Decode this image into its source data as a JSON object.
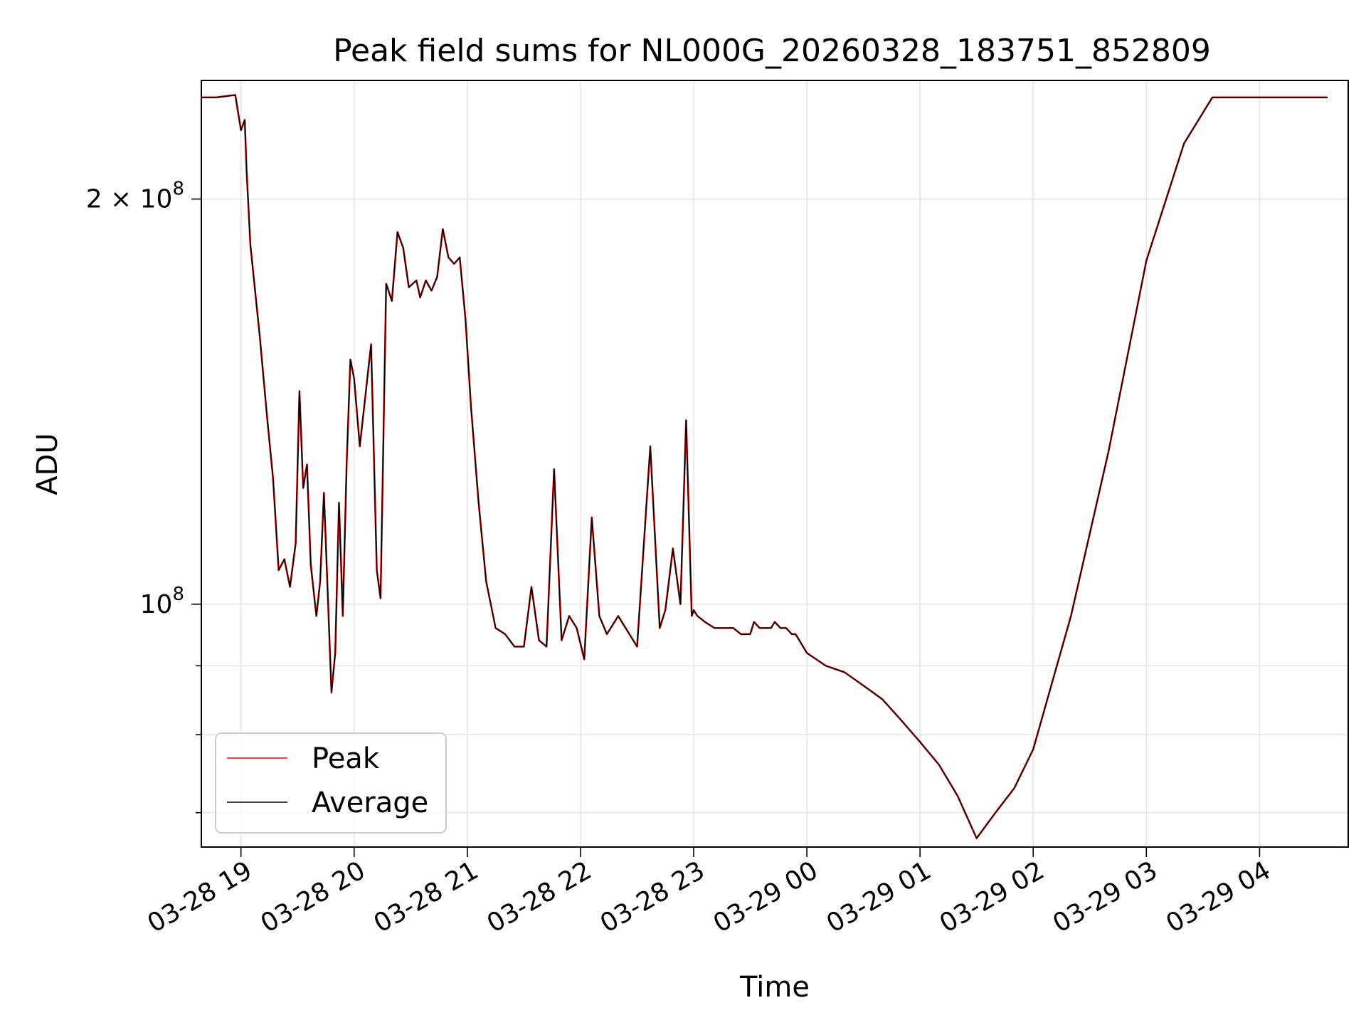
{
  "chart_data": {
    "type": "line",
    "title": "Peak field sums for NL000G_20260328_183751_852809",
    "xlabel": "Time",
    "ylabel": "ADU",
    "xscale": "time",
    "yscale": "log",
    "xlim": [
      "2026-03-28 18:39",
      "2026-03-29 04:47"
    ],
    "ylim": [
      66000000,
      245000000
    ],
    "grid": true,
    "legend_position": "lower-left",
    "x_tick_labels": [
      "03-28 19",
      "03-28 20",
      "03-28 21",
      "03-28 22",
      "03-28 23",
      "03-29 00",
      "03-29 01",
      "03-29 02",
      "03-29 03",
      "03-29 04"
    ],
    "x_tick_times": [
      "2026-03-28 19:00",
      "2026-03-28 20:00",
      "2026-03-28 21:00",
      "2026-03-28 22:00",
      "2026-03-28 23:00",
      "2026-03-29 00:00",
      "2026-03-29 01:00",
      "2026-03-29 02:00",
      "2026-03-29 03:00",
      "2026-03-29 04:00"
    ],
    "y_major_ticks": [
      {
        "value": 100000000,
        "mantissa": "",
        "base": "10",
        "exp": "8"
      },
      {
        "value": 200000000,
        "mantissa": "2 × ",
        "base": "10",
        "exp": "8"
      }
    ],
    "y_minor_ticks": [
      70000000,
      80000000,
      90000000
    ],
    "series": [
      {
        "name": "Peak",
        "color": "#ff0000",
        "x": [
          "2026-03-28 18:39",
          "2026-03-28 18:47",
          "2026-03-28 18:57",
          "2026-03-28 19:00",
          "2026-03-28 19:02",
          "2026-03-28 19:03",
          "2026-03-28 19:05",
          "2026-03-28 19:10",
          "2026-03-28 19:14",
          "2026-03-28 19:17",
          "2026-03-28 19:20",
          "2026-03-28 19:23",
          "2026-03-28 19:26",
          "2026-03-28 19:29",
          "2026-03-28 19:31",
          "2026-03-28 19:33",
          "2026-03-28 19:35",
          "2026-03-28 19:37",
          "2026-03-28 19:40",
          "2026-03-28 19:42",
          "2026-03-28 19:44",
          "2026-03-28 19:46",
          "2026-03-28 19:48",
          "2026-03-28 19:50",
          "2026-03-28 19:52",
          "2026-03-28 19:54",
          "2026-03-28 19:56",
          "2026-03-28 19:58",
          "2026-03-28 20:00",
          "2026-03-28 20:03",
          "2026-03-28 20:06",
          "2026-03-28 20:09",
          "2026-03-28 20:12",
          "2026-03-28 20:14",
          "2026-03-28 20:17",
          "2026-03-28 20:20",
          "2026-03-28 20:23",
          "2026-03-28 20:26",
          "2026-03-28 20:29",
          "2026-03-28 20:33",
          "2026-03-28 20:35",
          "2026-03-28 20:38",
          "2026-03-28 20:41",
          "2026-03-28 20:44",
          "2026-03-28 20:47",
          "2026-03-28 20:50",
          "2026-03-28 20:53",
          "2026-03-28 20:56",
          "2026-03-28 20:59",
          "2026-03-28 21:02",
          "2026-03-28 21:06",
          "2026-03-28 21:10",
          "2026-03-28 21:15",
          "2026-03-28 21:20",
          "2026-03-28 21:25",
          "2026-03-28 21:30",
          "2026-03-28 21:34",
          "2026-03-28 21:38",
          "2026-03-28 21:42",
          "2026-03-28 21:46",
          "2026-03-28 21:50",
          "2026-03-28 21:54",
          "2026-03-28 21:58",
          "2026-03-28 22:02",
          "2026-03-28 22:06",
          "2026-03-28 22:10",
          "2026-03-28 22:14",
          "2026-03-28 22:20",
          "2026-03-28 22:30",
          "2026-03-28 22:37",
          "2026-03-28 22:42",
          "2026-03-28 22:45",
          "2026-03-28 22:49",
          "2026-03-28 22:53",
          "2026-03-28 22:56",
          "2026-03-28 22:59",
          "2026-03-28 23:00",
          "2026-03-28 23:02",
          "2026-03-28 23:06",
          "2026-03-28 23:11",
          "2026-03-28 23:16",
          "2026-03-28 23:21",
          "2026-03-28 23:25",
          "2026-03-28 23:30",
          "2026-03-28 23:32",
          "2026-03-28 23:35",
          "2026-03-28 23:38",
          "2026-03-28 23:41",
          "2026-03-28 23:43",
          "2026-03-28 23:46",
          "2026-03-28 23:49",
          "2026-03-28 23:52",
          "2026-03-28 23:54",
          "2026-03-28 23:56",
          "2026-03-28 23:58",
          "2026-03-29 00:00",
          "2026-03-29 00:10",
          "2026-03-29 00:20",
          "2026-03-29 00:30",
          "2026-03-29 00:40",
          "2026-03-29 00:50",
          "2026-03-29 01:00",
          "2026-03-29 01:10",
          "2026-03-29 01:20",
          "2026-03-29 01:30",
          "2026-03-29 01:40",
          "2026-03-29 01:50",
          "2026-03-29 02:00",
          "2026-03-29 02:20",
          "2026-03-29 02:40",
          "2026-03-29 03:00",
          "2026-03-29 03:20",
          "2026-03-29 03:35",
          "2026-03-29 03:45",
          "2026-03-29 03:50",
          "2026-03-29 04:00",
          "2026-03-29 04:05",
          "2026-03-29 04:10",
          "2026-03-29 04:15",
          "2026-03-29 04:20",
          "2026-03-29 04:25",
          "2026-03-29 04:30",
          "2026-03-29 04:33",
          "2026-03-29 04:36"
        ],
        "y": [
          238000000,
          238000000,
          239000000,
          225000000,
          229000000,
          210000000,
          185000000,
          158000000,
          137000000,
          124000000,
          106000000,
          108000000,
          103000000,
          111000000,
          144000000,
          122000000,
          127000000,
          107000000,
          98000000,
          104000000,
          121000000,
          102000000,
          86000000,
          92000000,
          119000000,
          98000000,
          127000000,
          152000000,
          147000000,
          131000000,
          143000000,
          156000000,
          106000000,
          101000000,
          173000000,
          168000000,
          189000000,
          184000000,
          172000000,
          174000000,
          169000000,
          174000000,
          171000000,
          175000000,
          190000000,
          181000000,
          179000000,
          181000000,
          163000000,
          140000000,
          119000000,
          104000000,
          96000000,
          95000000,
          93000000,
          93000000,
          103000000,
          94000000,
          93000000,
          126000000,
          94000000,
          98000000,
          96000000,
          91000000,
          116000000,
          98000000,
          95000000,
          98000000,
          93000000,
          131000000,
          96000000,
          99000000,
          110000000,
          100000000,
          137000000,
          98000000,
          99000000,
          98000000,
          97000000,
          96000000,
          96000000,
          96000000,
          95000000,
          95000000,
          97000000,
          96000000,
          96000000,
          96000000,
          97000000,
          96000000,
          96000000,
          95000000,
          95000000,
          94000000,
          93000000,
          92000000,
          90000000,
          89000000,
          87000000,
          85000000,
          82000000,
          79000000,
          76000000,
          72000000,
          67000000,
          70000000,
          73000000,
          78000000,
          98000000,
          130000000,
          180000000,
          220000000,
          238000000,
          238000000,
          238000000,
          238000000,
          238000000,
          238000000,
          238000000,
          238000000,
          238000000,
          238000000,
          238000000,
          238000000
        ]
      },
      {
        "name": "Average",
        "color": "#000000",
        "x": [
          "2026-03-28 18:39",
          "2026-03-28 18:47",
          "2026-03-28 18:57",
          "2026-03-28 19:00",
          "2026-03-28 19:02",
          "2026-03-28 19:03",
          "2026-03-28 19:05",
          "2026-03-28 19:10",
          "2026-03-28 19:14",
          "2026-03-28 19:17",
          "2026-03-28 19:20",
          "2026-03-28 19:23",
          "2026-03-28 19:26",
          "2026-03-28 19:29",
          "2026-03-28 19:31",
          "2026-03-28 19:33",
          "2026-03-28 19:35",
          "2026-03-28 19:37",
          "2026-03-28 19:40",
          "2026-03-28 19:42",
          "2026-03-28 19:44",
          "2026-03-28 19:46",
          "2026-03-28 19:48",
          "2026-03-28 19:50",
          "2026-03-28 19:52",
          "2026-03-28 19:54",
          "2026-03-28 19:56",
          "2026-03-28 19:58",
          "2026-03-28 20:00",
          "2026-03-28 20:03",
          "2026-03-28 20:06",
          "2026-03-28 20:09",
          "2026-03-28 20:12",
          "2026-03-28 20:14",
          "2026-03-28 20:17",
          "2026-03-28 20:20",
          "2026-03-28 20:23",
          "2026-03-28 20:26",
          "2026-03-28 20:29",
          "2026-03-28 20:33",
          "2026-03-28 20:35",
          "2026-03-28 20:38",
          "2026-03-28 20:41",
          "2026-03-28 20:44",
          "2026-03-28 20:47",
          "2026-03-28 20:50",
          "2026-03-28 20:53",
          "2026-03-28 20:56",
          "2026-03-28 20:59",
          "2026-03-28 21:02",
          "2026-03-28 21:06",
          "2026-03-28 21:10",
          "2026-03-28 21:15",
          "2026-03-28 21:20",
          "2026-03-28 21:25",
          "2026-03-28 21:30",
          "2026-03-28 21:34",
          "2026-03-28 21:38",
          "2026-03-28 21:42",
          "2026-03-28 21:46",
          "2026-03-28 21:50",
          "2026-03-28 21:54",
          "2026-03-28 21:58",
          "2026-03-28 22:02",
          "2026-03-28 22:06",
          "2026-03-28 22:10",
          "2026-03-28 22:14",
          "2026-03-28 22:20",
          "2026-03-28 22:30",
          "2026-03-28 22:37",
          "2026-03-28 22:42",
          "2026-03-28 22:45",
          "2026-03-28 22:49",
          "2026-03-28 22:53",
          "2026-03-28 22:56",
          "2026-03-28 22:59",
          "2026-03-28 23:00",
          "2026-03-28 23:02",
          "2026-03-28 23:06",
          "2026-03-28 23:11",
          "2026-03-28 23:16",
          "2026-03-28 23:21",
          "2026-03-28 23:25",
          "2026-03-28 23:30",
          "2026-03-28 23:32",
          "2026-03-28 23:35",
          "2026-03-28 23:38",
          "2026-03-28 23:41",
          "2026-03-28 23:43",
          "2026-03-28 23:46",
          "2026-03-28 23:49",
          "2026-03-28 23:52",
          "2026-03-28 23:54",
          "2026-03-28 23:56",
          "2026-03-28 23:58",
          "2026-03-29 00:00",
          "2026-03-29 00:10",
          "2026-03-29 00:20",
          "2026-03-29 00:30",
          "2026-03-29 00:40",
          "2026-03-29 00:50",
          "2026-03-29 01:00",
          "2026-03-29 01:10",
          "2026-03-29 01:20",
          "2026-03-29 01:30",
          "2026-03-29 01:40",
          "2026-03-29 01:50",
          "2026-03-29 02:00",
          "2026-03-29 02:20",
          "2026-03-29 02:40",
          "2026-03-29 03:00",
          "2026-03-29 03:20",
          "2026-03-29 03:35",
          "2026-03-29 03:45",
          "2026-03-29 03:50",
          "2026-03-29 04:00",
          "2026-03-29 04:05",
          "2026-03-29 04:10",
          "2026-03-29 04:15",
          "2026-03-29 04:20",
          "2026-03-29 04:25",
          "2026-03-29 04:30",
          "2026-03-29 04:33",
          "2026-03-29 04:36"
        ],
        "y": [
          238000000,
          238000000,
          239000000,
          225000000,
          229000000,
          210000000,
          185000000,
          158000000,
          137000000,
          124000000,
          106000000,
          108000000,
          103000000,
          111000000,
          144000000,
          122000000,
          127000000,
          107000000,
          98000000,
          104000000,
          121000000,
          102000000,
          86000000,
          92000000,
          119000000,
          98000000,
          127000000,
          152000000,
          147000000,
          131000000,
          143000000,
          156000000,
          106000000,
          101000000,
          173000000,
          168000000,
          189000000,
          184000000,
          172000000,
          174000000,
          169000000,
          174000000,
          171000000,
          175000000,
          190000000,
          181000000,
          179000000,
          181000000,
          163000000,
          140000000,
          119000000,
          104000000,
          96000000,
          95000000,
          93000000,
          93000000,
          103000000,
          94000000,
          93000000,
          126000000,
          94000000,
          98000000,
          96000000,
          91000000,
          116000000,
          98000000,
          95000000,
          98000000,
          93000000,
          131000000,
          96000000,
          99000000,
          110000000,
          100000000,
          137000000,
          98000000,
          99000000,
          98000000,
          97000000,
          96000000,
          96000000,
          96000000,
          95000000,
          95000000,
          97000000,
          96000000,
          96000000,
          96000000,
          97000000,
          96000000,
          96000000,
          95000000,
          95000000,
          94000000,
          93000000,
          92000000,
          90000000,
          89000000,
          87000000,
          85000000,
          82000000,
          79000000,
          76000000,
          72000000,
          67000000,
          70000000,
          73000000,
          78000000,
          98000000,
          130000000,
          180000000,
          220000000,
          238000000,
          238000000,
          238000000,
          238000000,
          238000000,
          238000000,
          238000000,
          238000000,
          238000000,
          238000000,
          238000000,
          238000000
        ]
      }
    ]
  }
}
